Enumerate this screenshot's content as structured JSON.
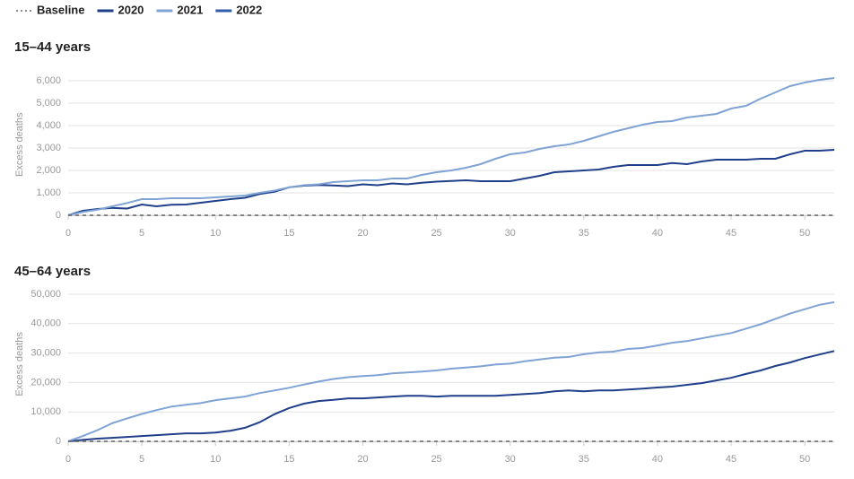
{
  "legend": [
    {
      "name": "Baseline",
      "color": "#666666",
      "dashed": true
    },
    {
      "name": "2020",
      "color": "#1f3f8a"
    },
    {
      "name": "2021",
      "color": "#7fa3d4"
    },
    {
      "name": "2022",
      "color": "#2f5fa8"
    }
  ],
  "chart_data": [
    {
      "type": "line",
      "title": "15–44 years",
      "y_label": "Excess deaths",
      "x": [
        0,
        1,
        2,
        3,
        4,
        5,
        6,
        7,
        8,
        9,
        10,
        11,
        12,
        13,
        14,
        15,
        16,
        17,
        18,
        19,
        20,
        21,
        22,
        23,
        24,
        25,
        26,
        27,
        28,
        29,
        30,
        31,
        32,
        33,
        34,
        35,
        36,
        37,
        38,
        39,
        40,
        41,
        42,
        43,
        44,
        45,
        46,
        47,
        48,
        49,
        50,
        51,
        52
      ],
      "xlim": [
        0,
        52
      ],
      "xticks": [
        0,
        5,
        10,
        15,
        20,
        25,
        30,
        35,
        40,
        45,
        50
      ],
      "ylim": [
        0,
        6300
      ],
      "yticks": [
        0,
        {
          "value": 1000,
          "label": "1,000"
        },
        {
          "value": 2000,
          "label": "2,000"
        },
        {
          "value": 3000,
          "label": "3,000"
        },
        {
          "value": 4000,
          "label": "4,000"
        },
        {
          "value": 5000,
          "label": "5,000"
        },
        {
          "value": 6000,
          "label": "6,000"
        }
      ],
      "grid": true,
      "baseline": 0,
      "series": [
        {
          "name": "2020",
          "color": "#1f3f8a",
          "values": [
            0,
            200,
            280,
            330,
            300,
            480,
            400,
            470,
            480,
            560,
            640,
            720,
            780,
            950,
            1050,
            1250,
            1320,
            1350,
            1330,
            1300,
            1380,
            1340,
            1420,
            1380,
            1450,
            1500,
            1530,
            1560,
            1520,
            1520,
            1520,
            1640,
            1760,
            1920,
            1960,
            2000,
            2040,
            2160,
            2240,
            2240,
            2240,
            2330,
            2280,
            2400,
            2480,
            2480,
            2480,
            2520,
            2520,
            2720,
            2880,
            2880,
            2920
          ]
        },
        {
          "name": "2021",
          "color": "#7fa3d4",
          "values": [
            0,
            150,
            250,
            400,
            550,
            720,
            720,
            760,
            760,
            760,
            800,
            840,
            880,
            1000,
            1100,
            1250,
            1340,
            1380,
            1480,
            1520,
            1560,
            1560,
            1640,
            1640,
            1800,
            1920,
            2000,
            2120,
            2280,
            2520,
            2720,
            2800,
            2960,
            3080,
            3160,
            3320,
            3520,
            3720,
            3880,
            4040,
            4160,
            4200,
            4360,
            4440,
            4520,
            4760,
            4880,
            5200,
            5480,
            5760,
            5920,
            6040,
            6120
          ]
        }
      ]
    },
    {
      "type": "line",
      "title": "45–64 years",
      "y_label": "Excess deaths",
      "x": [
        0,
        1,
        2,
        3,
        4,
        5,
        6,
        7,
        8,
        9,
        10,
        11,
        12,
        13,
        14,
        15,
        16,
        17,
        18,
        19,
        20,
        21,
        22,
        23,
        24,
        25,
        26,
        27,
        28,
        29,
        30,
        31,
        32,
        33,
        34,
        35,
        36,
        37,
        38,
        39,
        40,
        41,
        42,
        43,
        44,
        45,
        46,
        47,
        48,
        49,
        50,
        51,
        52
      ],
      "xlim": [
        0,
        52
      ],
      "xticks": [
        0,
        5,
        10,
        15,
        20,
        25,
        30,
        35,
        40,
        45,
        50
      ],
      "ylim": [
        0,
        52500
      ],
      "yticks": [
        0,
        {
          "value": 10000,
          "label": "10,000"
        },
        {
          "value": 20000,
          "label": "20,000"
        },
        {
          "value": 30000,
          "label": "30,000"
        },
        {
          "value": 40000,
          "label": "40,000"
        },
        {
          "value": 50000,
          "label": "50,000"
        }
      ],
      "grid": true,
      "baseline": 0,
      "series": [
        {
          "name": "2020",
          "color": "#1f3f8a",
          "values": [
            0,
            500,
            900,
            1200,
            1500,
            1800,
            2100,
            2400,
            2700,
            2700,
            3000,
            3600,
            4600,
            6500,
            9200,
            11300,
            12800,
            13700,
            14100,
            14600,
            14600,
            14900,
            15200,
            15500,
            15500,
            15200,
            15500,
            15500,
            15500,
            15500,
            15800,
            16100,
            16400,
            17000,
            17300,
            17000,
            17300,
            17300,
            17600,
            17900,
            18300,
            18600,
            19200,
            19800,
            20700,
            21600,
            22900,
            24100,
            25600,
            26800,
            28300,
            29500,
            30700
          ]
        },
        {
          "name": "2021",
          "color": "#7fa3d4",
          "values": [
            0,
            1800,
            3800,
            6200,
            7800,
            9300,
            10600,
            11800,
            12400,
            13000,
            14000,
            14600,
            15200,
            16400,
            17300,
            18200,
            19300,
            20300,
            21200,
            21800,
            22200,
            22500,
            23100,
            23400,
            23700,
            24100,
            24700,
            25100,
            25500,
            26100,
            26400,
            27200,
            27800,
            28400,
            28700,
            29600,
            30200,
            30500,
            31400,
            31700,
            32600,
            33500,
            34100,
            35000,
            35900,
            36800,
            38300,
            39800,
            41600,
            43400,
            44900,
            46400,
            47300
          ]
        }
      ]
    }
  ]
}
